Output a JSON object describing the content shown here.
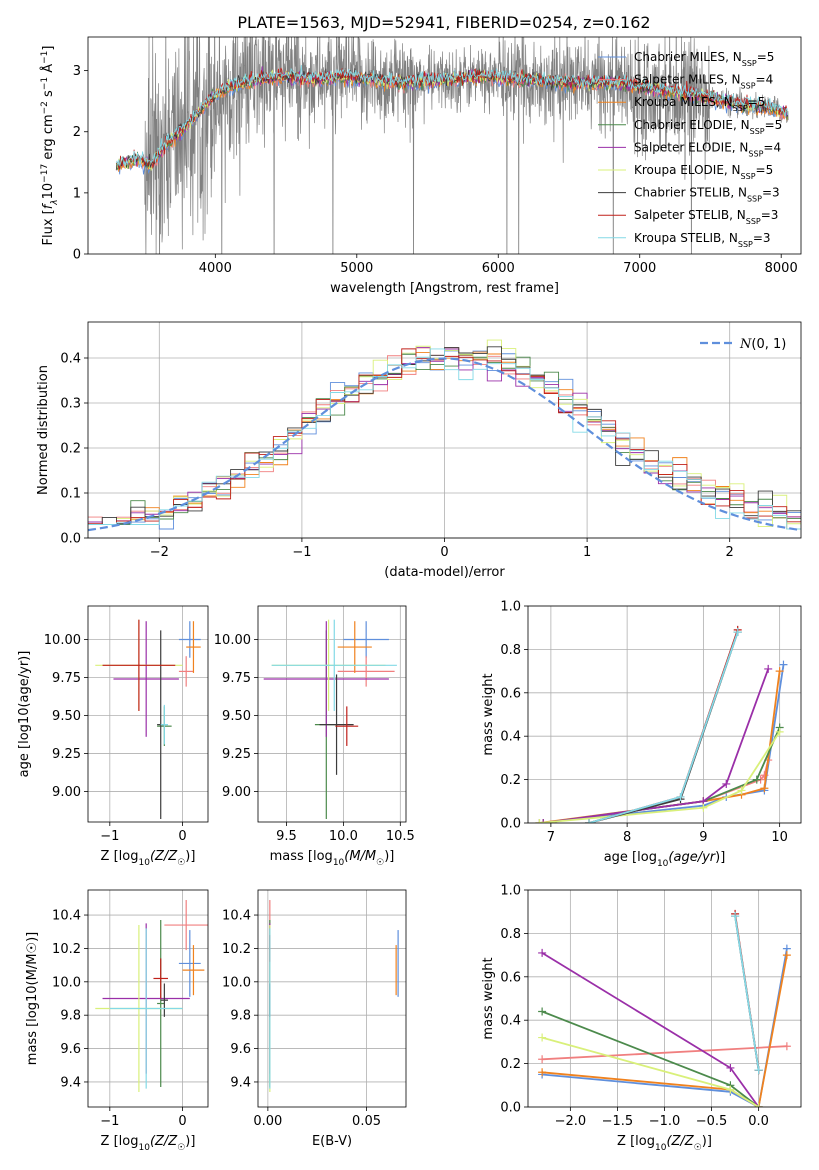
{
  "figure_title": "PLATE=1563, MJD=52941, FIBERID=0254, z=0.162",
  "colors": {
    "chabrier_miles": "#5f8fdc",
    "salpeter_miles": "#f07f7f",
    "kroupa_miles": "#f0821e",
    "chabrier_elodie": "#4c8a4c",
    "salpeter_elodie": "#9a2fa8",
    "kroupa_elodie": "#d9f07a",
    "chabrier_stelib": "#3c3c3c",
    "salpeter_stelib": "#c0201a",
    "kroupa_stelib": "#83d9e6",
    "data": "#808080",
    "normal_curve": "#5f8fdc"
  },
  "chart_data": [
    {
      "id": "spectrum",
      "type": "line",
      "title": "PLATE=1563, MJD=52941, FIBERID=0254, z=0.162",
      "xlabel": "wavelength [Angstrom, rest frame]",
      "ylabel_prefix": "Flux [",
      "ylabel_suffix": "]",
      "xlim": [
        3100,
        8140
      ],
      "ylim": [
        0,
        3.55
      ],
      "xticks": [
        4000,
        5000,
        6000,
        7000,
        8000
      ],
      "yticks": [
        0,
        1,
        2,
        3
      ],
      "legend": [
        "Chabrier MILES, N_SSP=5",
        "Salpeter MILES, N_SSP=4",
        "Kroupa MILES, N_SSP=5",
        "Chabrier ELODIE, N_SSP=5",
        "Salpeter ELODIE, N_SSP=4",
        "Kroupa ELODIE, N_SSP=5",
        "Chabrier STELIB, N_SSP=3",
        "Salpeter STELIB, N_SSP=3",
        "Kroupa STELIB, N_SSP=3"
      ],
      "legend_position": "right",
      "model_continuum": {
        "x": [
          3300,
          3450,
          3550,
          3650,
          3800,
          3950,
          4100,
          4300,
          4500,
          4700,
          4900,
          5100,
          5300,
          5600,
          5900,
          6200,
          6500,
          6800,
          7100,
          7400,
          7700,
          7900,
          8050
        ],
        "y": [
          1.45,
          1.55,
          1.45,
          1.8,
          2.1,
          2.5,
          2.75,
          2.85,
          2.9,
          2.85,
          2.9,
          2.85,
          2.8,
          2.85,
          2.9,
          2.85,
          2.8,
          2.8,
          2.7,
          2.6,
          2.45,
          2.4,
          2.3
        ]
      }
    },
    {
      "id": "residuals",
      "type": "line",
      "xlabel": "(data-model)/error",
      "ylabel": "Normed distribution",
      "xlim": [
        -2.5,
        2.5
      ],
      "ylim": [
        0,
        0.48
      ],
      "xticks": [
        -2,
        -1,
        0,
        1,
        2
      ],
      "yticks": [
        0.0,
        0.1,
        0.2,
        0.3,
        0.4
      ],
      "legend": [
        "N(0,1)"
      ],
      "legend_position": "top-right",
      "grid": true,
      "hist_edges_start": -2.5,
      "hist_bin_width": 0.1
    },
    {
      "id": "age_vs_Z",
      "type": "scatter",
      "xlabel": "Z [log10(Z/Z☉)]",
      "ylabel": "age [log10(age/yr)]",
      "xlim": [
        -1.3,
        0.35
      ],
      "ylim": [
        8.8,
        10.22
      ],
      "xticks": [
        -1,
        0
      ],
      "yticks": [
        9.0,
        9.25,
        9.5,
        9.75,
        10.0
      ],
      "grid": true,
      "points": [
        {
          "x": 0.1,
          "y": 10.0,
          "ex": 0.15,
          "ey": 0.12
        },
        {
          "x": 0.05,
          "y": 9.79,
          "ex": 0.1,
          "ey": 0.1
        },
        {
          "x": 0.15,
          "y": 9.95,
          "ex": 0.1,
          "ey": 0.17
        },
        {
          "x": -0.25,
          "y": 9.43,
          "ex": 0.1,
          "ey": 0.13
        },
        {
          "x": -0.5,
          "y": 9.74,
          "ex": 0.45,
          "ey": 0.38
        },
        {
          "x": -0.6,
          "y": 9.83,
          "ex": 0.6,
          "ey": 0.3
        },
        {
          "x": -0.3,
          "y": 9.44,
          "ex": 0.05,
          "ey": 0.62
        },
        {
          "x": -0.6,
          "y": 9.83,
          "ex": 0.5,
          "ey": 0.3
        },
        {
          "x": -0.25,
          "y": 9.44,
          "ex": 0.05,
          "ey": 0.13
        }
      ]
    },
    {
      "id": "age_vs_mass",
      "type": "scatter",
      "xlabel": "mass [log10(M/M☉)]",
      "ylabel": "",
      "xlim": [
        9.25,
        10.55
      ],
      "ylim": [
        8.8,
        10.22
      ],
      "xticks": [
        9.5,
        10.0,
        10.5
      ],
      "yticks": [
        9.0,
        9.25,
        9.5,
        9.75,
        10.0
      ],
      "grid": true,
      "points": [
        {
          "x": 10.2,
          "y": 10.0,
          "ex": 0.2,
          "ey": 0.12
        },
        {
          "x": 10.2,
          "y": 9.79,
          "ex": 0.25,
          "ey": 0.1
        },
        {
          "x": 10.1,
          "y": 9.95,
          "ex": 0.15,
          "ey": 0.17
        },
        {
          "x": 9.85,
          "y": 9.44,
          "ex": 0.1,
          "ey": 0.62
        },
        {
          "x": 9.85,
          "y": 9.74,
          "ex": 0.55,
          "ey": 0.38
        },
        {
          "x": 9.87,
          "y": 9.83,
          "ex": 0.5,
          "ey": 0.3
        },
        {
          "x": 9.94,
          "y": 9.44,
          "ex": 0.15,
          "ey": 0.33
        },
        {
          "x": 10.03,
          "y": 9.43,
          "ex": 0.1,
          "ey": 0.13
        },
        {
          "x": 9.92,
          "y": 9.83,
          "ex": 0.55,
          "ey": 0.3
        }
      ]
    },
    {
      "id": "mass_weight_vs_age",
      "type": "line",
      "xlabel": "age [log10(age/yr)]",
      "ylabel": "mass weight",
      "xlim": [
        6.7,
        10.28
      ],
      "ylim": [
        0,
        1.0
      ],
      "xticks": [
        7,
        8,
        9,
        10
      ],
      "yticks": [
        0.0,
        0.2,
        0.4,
        0.6,
        0.8,
        1.0
      ],
      "grid": true,
      "series": [
        {
          "x": [
            6.85,
            9.0,
            9.3,
            9.8,
            10.05
          ],
          "y": [
            0.0,
            0.08,
            0.12,
            0.15,
            0.73
          ]
        },
        {
          "x": [
            6.9,
            9.0,
            9.75,
            9.8,
            9.85
          ],
          "y": [
            0.0,
            0.1,
            0.2,
            0.22,
            0.29
          ]
        },
        {
          "x": [
            6.85,
            9.0,
            9.5,
            9.8,
            10.0
          ],
          "y": [
            0.0,
            0.1,
            0.13,
            0.16,
            0.7
          ]
        },
        {
          "x": [
            6.9,
            9.0,
            9.7,
            10.0
          ],
          "y": [
            0.0,
            0.1,
            0.2,
            0.44
          ]
        },
        {
          "x": [
            6.9,
            9.0,
            9.3,
            9.85
          ],
          "y": [
            0.0,
            0.1,
            0.18,
            0.71
          ]
        },
        {
          "x": [
            6.85,
            9.0,
            9.5,
            10.0
          ],
          "y": [
            0.0,
            0.07,
            0.15,
            0.42
          ]
        },
        {
          "x": [
            7.5,
            8.7,
            9.45
          ],
          "y": [
            0.0,
            0.11,
            0.88
          ]
        },
        {
          "x": [
            7.5,
            8.7,
            9.45
          ],
          "y": [
            0.0,
            0.12,
            0.89
          ]
        },
        {
          "x": [
            7.5,
            8.7,
            9.45
          ],
          "y": [
            0.0,
            0.12,
            0.88
          ]
        }
      ]
    },
    {
      "id": "mass_vs_Z",
      "type": "scatter",
      "xlabel": "Z [log10(Z/Z☉)]",
      "ylabel": "mass [log10(M/M☉)]",
      "xlim": [
        -1.3,
        0.35
      ],
      "ylim": [
        9.25,
        10.55
      ],
      "xticks": [
        -1,
        0
      ],
      "yticks": [
        9.4,
        9.6,
        9.8,
        10.0,
        10.2,
        10.4
      ],
      "grid": true,
      "points": [
        {
          "x": 0.1,
          "y": 10.11,
          "ex": 0.15,
          "ey": 0.2
        },
        {
          "x": 0.05,
          "y": 10.34,
          "ex": 0.3,
          "ey": 0.15
        },
        {
          "x": 0.15,
          "y": 10.07,
          "ex": 0.15,
          "ey": 0.15
        },
        {
          "x": -0.3,
          "y": 9.87,
          "ex": 0.05,
          "ey": 0.5
        },
        {
          "x": -0.5,
          "y": 9.9,
          "ex": 0.6,
          "ey": 0.45
        },
        {
          "x": -0.6,
          "y": 9.84,
          "ex": 0.6,
          "ey": 0.5
        },
        {
          "x": -0.25,
          "y": 9.89,
          "ex": 0.05,
          "ey": 0.1
        },
        {
          "x": -0.3,
          "y": 10.02,
          "ex": 0.1,
          "ey": 0.12
        },
        {
          "x": -0.5,
          "y": 9.84,
          "ex": 0.5,
          "ey": 0.48
        }
      ]
    },
    {
      "id": "mass_vs_EBV",
      "type": "scatter",
      "xlabel": "E(B-V)",
      "ylabel": "",
      "xlim": [
        -0.005,
        0.07
      ],
      "ylim": [
        9.25,
        10.55
      ],
      "xticks": [
        0.0,
        0.05
      ],
      "yticks": [
        9.4,
        9.6,
        9.8,
        10.0,
        10.2,
        10.4
      ],
      "grid": true,
      "points": [
        {
          "x": 0.066,
          "y": 10.11,
          "ex": 0,
          "ey": 0.2
        },
        {
          "x": 0.001,
          "y": 10.34,
          "ex": 0,
          "ey": 0.15
        },
        {
          "x": 0.065,
          "y": 10.07,
          "ex": 0,
          "ey": 0.15
        },
        {
          "x": 0.001,
          "y": 9.87,
          "ex": 0,
          "ey": 0.5
        },
        {
          "x": 0.001,
          "y": 9.9,
          "ex": 0,
          "ey": 0.45
        },
        {
          "x": 0.001,
          "y": 9.84,
          "ex": 0,
          "ey": 0.5
        },
        {
          "x": 0.001,
          "y": 9.89,
          "ex": 0,
          "ey": 0.1
        },
        {
          "x": 0.001,
          "y": 10.2,
          "ex": 0,
          "ey": 0.08
        },
        {
          "x": 0.001,
          "y": 9.84,
          "ex": 0,
          "ey": 0.48
        }
      ]
    },
    {
      "id": "mass_weight_vs_Z",
      "type": "line",
      "xlabel": "Z [log10(Z/Z☉)]",
      "ylabel": "mass weight",
      "xlim": [
        -2.45,
        0.45
      ],
      "ylim": [
        0,
        1.0
      ],
      "xticks": [
        -2.0,
        -1.5,
        -1.0,
        -0.5,
        0.0
      ],
      "yticks": [
        0.0,
        0.2,
        0.4,
        0.6,
        0.8,
        1.0
      ],
      "grid": true,
      "series": [
        {
          "x": [
            -2.3,
            -0.3,
            0.0,
            0.3
          ],
          "y": [
            0.15,
            0.07,
            0.0,
            0.73
          ]
        },
        {
          "x": [
            -2.3,
            0.3
          ],
          "y": [
            0.22,
            0.28
          ]
        },
        {
          "x": [
            -2.3,
            -0.3,
            0.0,
            0.3
          ],
          "y": [
            0.16,
            0.08,
            0.0,
            0.7
          ]
        },
        {
          "x": [
            -2.3,
            -0.3,
            0.0
          ],
          "y": [
            0.44,
            0.1,
            0.0
          ]
        },
        {
          "x": [
            -2.3,
            -0.3,
            0.0
          ],
          "y": [
            0.71,
            0.18,
            0.0
          ]
        },
        {
          "x": [
            -2.3,
            -0.3,
            0.0
          ],
          "y": [
            0.32,
            0.08,
            0.0
          ]
        },
        {
          "x": [
            -0.25,
            0.0
          ],
          "y": [
            0.88,
            0.17
          ]
        },
        {
          "x": [
            -0.25,
            0.0
          ],
          "y": [
            0.89,
            0.17
          ]
        },
        {
          "x": [
            -0.25,
            0.0
          ],
          "y": [
            0.88,
            0.17
          ]
        }
      ]
    }
  ]
}
